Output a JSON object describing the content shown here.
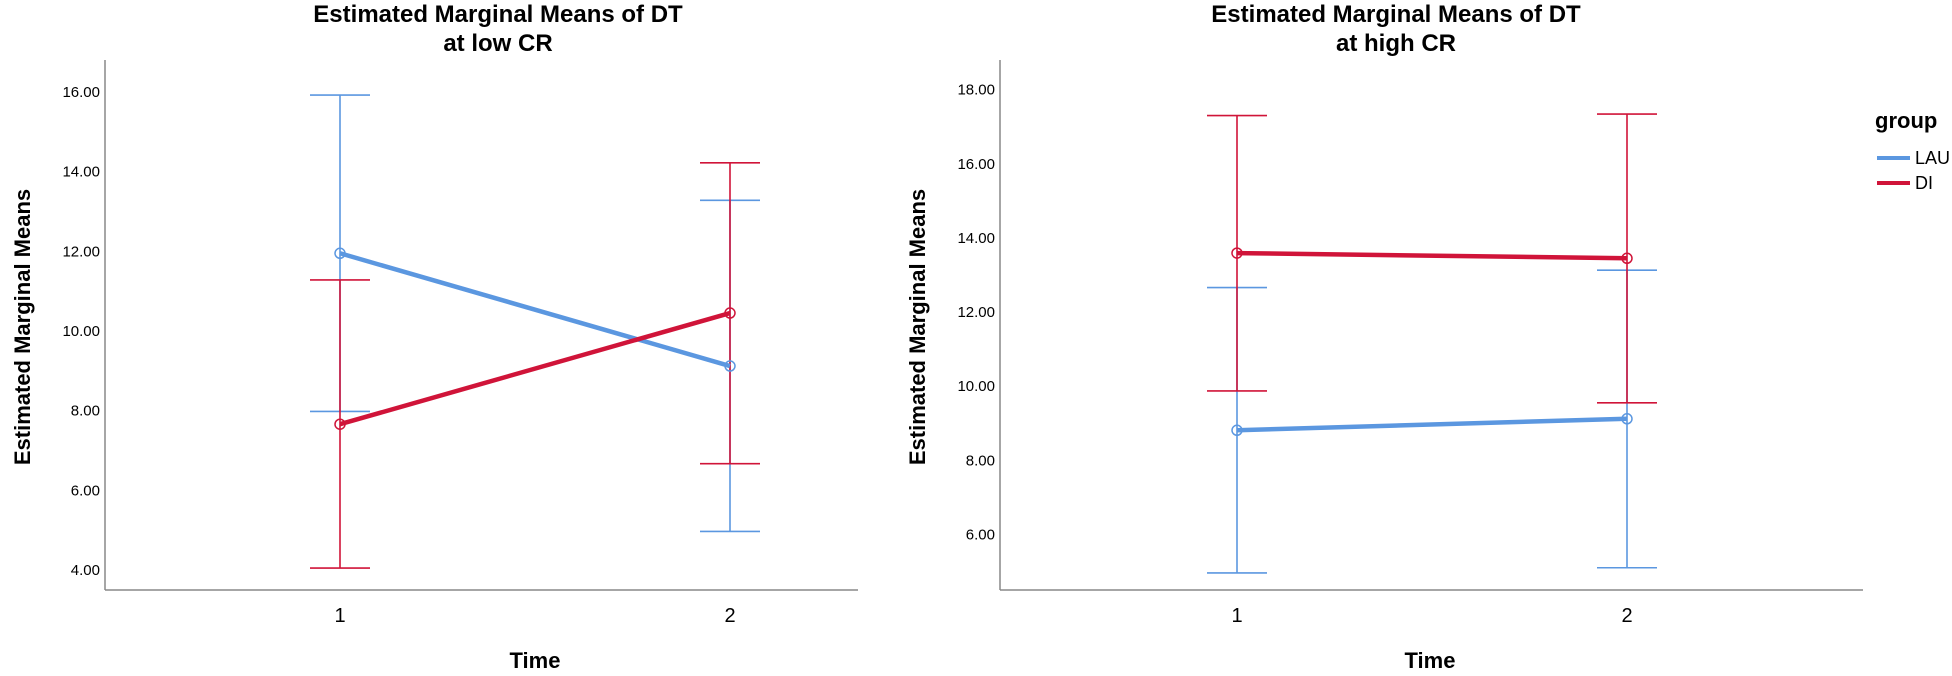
{
  "chart_data": [
    {
      "type": "line",
      "title": [
        "Estimated Marginal Means of DT",
        "at low CR"
      ],
      "xlabel": "Time",
      "ylabel": "Estimated Marginal Means",
      "categories": [
        "1",
        "2"
      ],
      "yticks": [
        "4.00",
        "6.00",
        "8.00",
        "10.00",
        "12.00",
        "14.00",
        "16.00"
      ],
      "ylim": [
        3.5,
        16.8
      ],
      "series": [
        {
          "name": "LAU",
          "color": "#5b97e0",
          "values": [
            11.95,
            9.12
          ],
          "lower": [
            7.98,
            4.97
          ],
          "upper": [
            15.92,
            13.28
          ]
        },
        {
          "name": "DI",
          "color": "#d01439",
          "values": [
            7.66,
            10.45
          ],
          "lower": [
            4.05,
            6.67
          ],
          "upper": [
            11.28,
            14.22
          ]
        }
      ]
    },
    {
      "type": "line",
      "title": [
        "Estimated Marginal Means of  DT",
        "at high CR"
      ],
      "xlabel": "Time",
      "ylabel": "Estimated Marginal Means",
      "categories": [
        "1",
        "2"
      ],
      "yticks": [
        "6.00",
        "8.00",
        "10.00",
        "12.00",
        "14.00",
        "16.00",
        "18.00"
      ],
      "ylim": [
        4.5,
        18.8
      ],
      "series": [
        {
          "name": "LAU",
          "color": "#5b97e0",
          "values": [
            8.81,
            9.12
          ],
          "lower": [
            4.96,
            5.1
          ],
          "upper": [
            12.66,
            13.13
          ]
        },
        {
          "name": "DI",
          "color": "#d01439",
          "values": [
            13.59,
            13.45
          ],
          "lower": [
            9.87,
            9.55
          ],
          "upper": [
            17.3,
            17.34
          ]
        }
      ]
    }
  ],
  "legend": {
    "title": "group",
    "items": [
      {
        "label": "LAU",
        "color": "#5b97e0"
      },
      {
        "label": "DI",
        "color": "#d01439"
      }
    ]
  }
}
